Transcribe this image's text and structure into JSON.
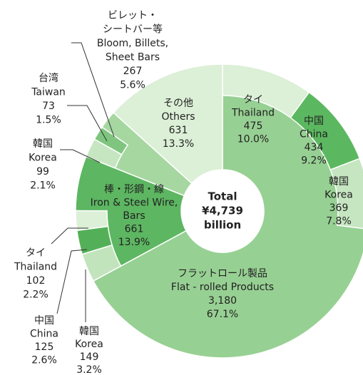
{
  "chart_data": {
    "type": "sunburst",
    "center_label": [
      "Total",
      "¥4,739",
      "billion"
    ],
    "categories": [
      {
        "name": [
          "フラットロール製品",
          "Flat - rolled Products"
        ],
        "value": 3180,
        "value_label": "3,180",
        "percent": 67.1,
        "percent_label": "67.1%",
        "color": "#97d093",
        "children": [
          {
            "name": [
              "タイ",
              "Thailand"
            ],
            "value": 475,
            "percent": 10,
            "percent_label": "10.0%",
            "color": "#dcefd7"
          },
          {
            "name": [
              "中国",
              "China"
            ],
            "value": 434,
            "percent": 9.2,
            "percent_label": "9.2%",
            "color": "#5cb860"
          },
          {
            "name": [
              "韓国",
              "Korea"
            ],
            "value": 369,
            "percent": 7.8,
            "percent_label": "7.8%",
            "color": "#c6e6c1"
          }
        ]
      },
      {
        "name": [
          "棒・形鋼・線",
          "Iron & Steel Wire,",
          "Bars"
        ],
        "value": 661,
        "percent": 13.9,
        "percent_label": "13.9%",
        "color": "#5db661",
        "children": [
          {
            "name": [
              "韓国",
              "Korea"
            ],
            "value": 149,
            "percent": 3.2,
            "percent_label": "3.2%",
            "color": "#c2e4bd"
          },
          {
            "name": [
              "中国",
              "China"
            ],
            "value": 125,
            "percent": 2.6,
            "percent_label": "2.6%",
            "color": "#54b058"
          },
          {
            "name": [
              "タイ",
              "Thailand"
            ],
            "value": 102,
            "percent": 2.2,
            "percent_label": "2.2%",
            "color": "#dcefd7"
          }
        ]
      },
      {
        "name": [
          "ビレット・",
          "シートバー等",
          "Bloom, Billets,",
          "Sheet Bars"
        ],
        "value": 267,
        "percent": 5.6,
        "percent_label": "5.6%",
        "color": "#a6d7a1",
        "children": [
          {
            "name": [
              "韓国",
              "Korea"
            ],
            "value": 99,
            "percent": 2.1,
            "percent_label": "2.1%",
            "color": "#c6e6c1"
          },
          {
            "name": [
              "台湾",
              "Taiwan"
            ],
            "value": 73,
            "percent": 1.5,
            "percent_label": "1.5%",
            "color": "#7fc57f"
          }
        ]
      },
      {
        "name": [
          "その他",
          "Others"
        ],
        "value": 631,
        "percent": 13.3,
        "percent_label": "13.3%",
        "color": "#dcefd7",
        "children": []
      }
    ]
  }
}
